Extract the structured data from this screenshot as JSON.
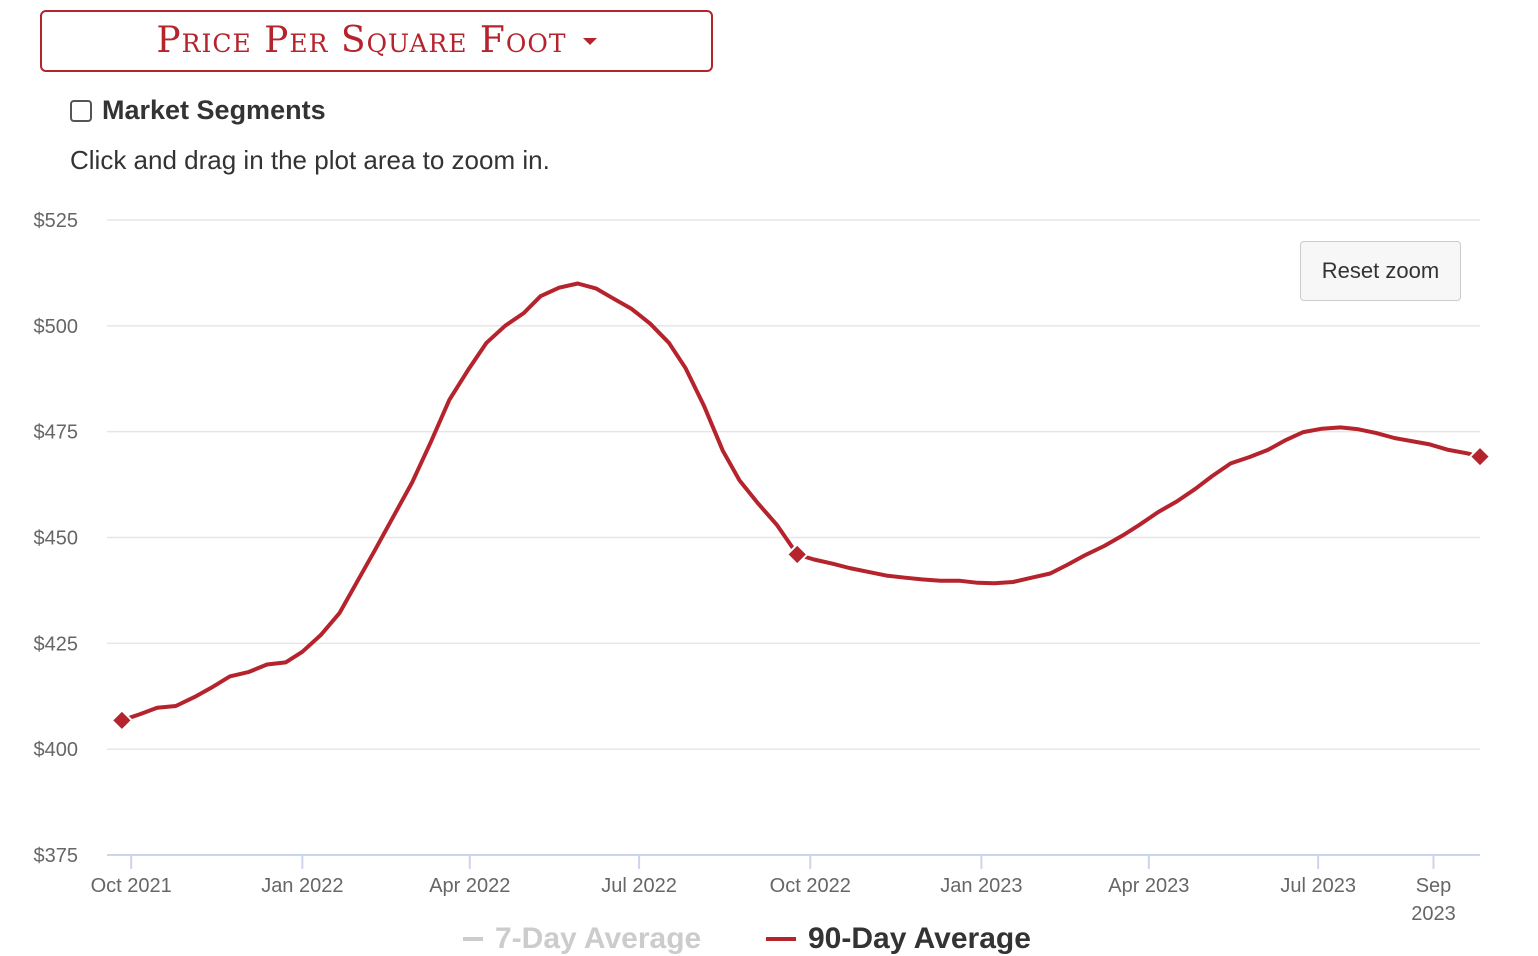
{
  "dropdown": {
    "label": "Price Per Square Foot"
  },
  "segments": {
    "label": "Market Segments",
    "checked": false
  },
  "hint": "Click and drag in the plot area to zoom in.",
  "reset_zoom": "Reset zoom",
  "colors": {
    "accent": "#b5232d",
    "grid": "#e6e6e6",
    "axis": "#ccd6eb",
    "legend_inactive": "#cccccc"
  },
  "legend": [
    {
      "label": "7-Day Average",
      "active": false
    },
    {
      "label": "90-Day Average",
      "active": true
    }
  ],
  "chart_data": {
    "type": "line",
    "y_ticks": [
      "$375",
      "$400",
      "$425",
      "$450",
      "$475",
      "$500",
      "$525"
    ],
    "ylim": [
      375,
      525
    ],
    "x_ticks": [
      {
        "date": "2021-10-01",
        "label": [
          "Oct 2021"
        ]
      },
      {
        "date": "2022-01-01",
        "label": [
          "Jan 2022"
        ]
      },
      {
        "date": "2022-04-01",
        "label": [
          "Apr 2022"
        ]
      },
      {
        "date": "2022-07-01",
        "label": [
          "Jul 2022"
        ]
      },
      {
        "date": "2022-10-01",
        "label": [
          "Oct 2022"
        ]
      },
      {
        "date": "2023-01-01",
        "label": [
          "Jan 2023"
        ]
      },
      {
        "date": "2023-04-01",
        "label": [
          "Apr 2023"
        ]
      },
      {
        "date": "2023-07-01",
        "label": [
          "Jul 2023"
        ]
      },
      {
        "date": "2023-09-01",
        "label": [
          "Sep",
          "2023"
        ]
      }
    ],
    "xlim": [
      "2021-09-18",
      "2023-09-26"
    ],
    "grid": true,
    "legend_position": "bottom",
    "series": [
      {
        "name": "90-Day Average",
        "color": "#b5232d",
        "markers": [
          "2021-09-26",
          "2022-09-24",
          "2023-09-26"
        ],
        "points": [
          [
            "2021-09-26",
            406.8
          ],
          [
            "2021-10-06",
            408.3
          ],
          [
            "2021-10-15",
            409.8
          ],
          [
            "2021-10-25",
            410.2
          ],
          [
            "2021-11-04",
            412.3
          ],
          [
            "2021-11-13",
            414.5
          ],
          [
            "2021-11-23",
            417.2
          ],
          [
            "2021-12-03",
            418.2
          ],
          [
            "2021-12-13",
            420.0
          ],
          [
            "2021-12-23",
            420.5
          ],
          [
            "2022-01-01",
            423.0
          ],
          [
            "2022-01-11",
            427.0
          ],
          [
            "2022-01-21",
            432.2
          ],
          [
            "2022-01-31",
            440.0
          ],
          [
            "2022-02-09",
            447.0
          ],
          [
            "2022-02-19",
            455.0
          ],
          [
            "2022-03-01",
            463.0
          ],
          [
            "2022-03-11",
            472.5
          ],
          [
            "2022-03-21",
            482.5
          ],
          [
            "2022-03-31",
            489.5
          ],
          [
            "2022-04-10",
            496.0
          ],
          [
            "2022-04-20",
            500.0
          ],
          [
            "2022-04-30",
            503.0
          ],
          [
            "2022-05-09",
            507.0
          ],
          [
            "2022-05-19",
            509.0
          ],
          [
            "2022-05-29",
            510.0
          ],
          [
            "2022-06-08",
            508.8
          ],
          [
            "2022-06-17",
            506.5
          ],
          [
            "2022-06-27",
            504.0
          ],
          [
            "2022-07-07",
            500.5
          ],
          [
            "2022-07-17",
            496.0
          ],
          [
            "2022-07-26",
            490.0
          ],
          [
            "2022-08-05",
            481.0
          ],
          [
            "2022-08-15",
            470.5
          ],
          [
            "2022-08-24",
            463.5
          ],
          [
            "2022-09-03",
            458.0
          ],
          [
            "2022-09-13",
            453.0
          ],
          [
            "2022-09-24",
            446.0
          ],
          [
            "2022-10-03",
            444.8
          ],
          [
            "2022-10-13",
            443.8
          ],
          [
            "2022-10-22",
            442.8
          ],
          [
            "2022-11-01",
            441.9
          ],
          [
            "2022-11-11",
            441.0
          ],
          [
            "2022-11-21",
            440.5
          ],
          [
            "2022-11-30",
            440.1
          ],
          [
            "2022-12-10",
            439.8
          ],
          [
            "2022-12-20",
            439.8
          ],
          [
            "2022-12-30",
            439.3
          ],
          [
            "2023-01-08",
            439.2
          ],
          [
            "2023-01-18",
            439.5
          ],
          [
            "2023-01-28",
            440.5
          ],
          [
            "2023-02-07",
            441.5
          ],
          [
            "2023-02-16",
            443.5
          ],
          [
            "2023-02-26",
            445.9
          ],
          [
            "2023-03-08",
            448.0
          ],
          [
            "2023-03-18",
            450.5
          ],
          [
            "2023-03-27",
            453.0
          ],
          [
            "2023-04-06",
            456.0
          ],
          [
            "2023-04-16",
            458.5
          ],
          [
            "2023-04-26",
            461.5
          ],
          [
            "2023-05-05",
            464.5
          ],
          [
            "2023-05-15",
            467.5
          ],
          [
            "2023-05-25",
            469.0
          ],
          [
            "2023-06-04",
            470.7
          ],
          [
            "2023-06-13",
            472.9
          ],
          [
            "2023-06-23",
            474.9
          ],
          [
            "2023-07-03",
            475.7
          ],
          [
            "2023-07-13",
            476.0
          ],
          [
            "2023-07-22",
            475.6
          ],
          [
            "2023-08-01",
            474.7
          ],
          [
            "2023-08-11",
            473.5
          ],
          [
            "2023-08-21",
            472.7
          ],
          [
            "2023-08-30",
            472.0
          ],
          [
            "2023-09-09",
            470.7
          ],
          [
            "2023-09-19",
            469.9
          ],
          [
            "2023-09-26",
            469.1
          ]
        ]
      }
    ]
  }
}
